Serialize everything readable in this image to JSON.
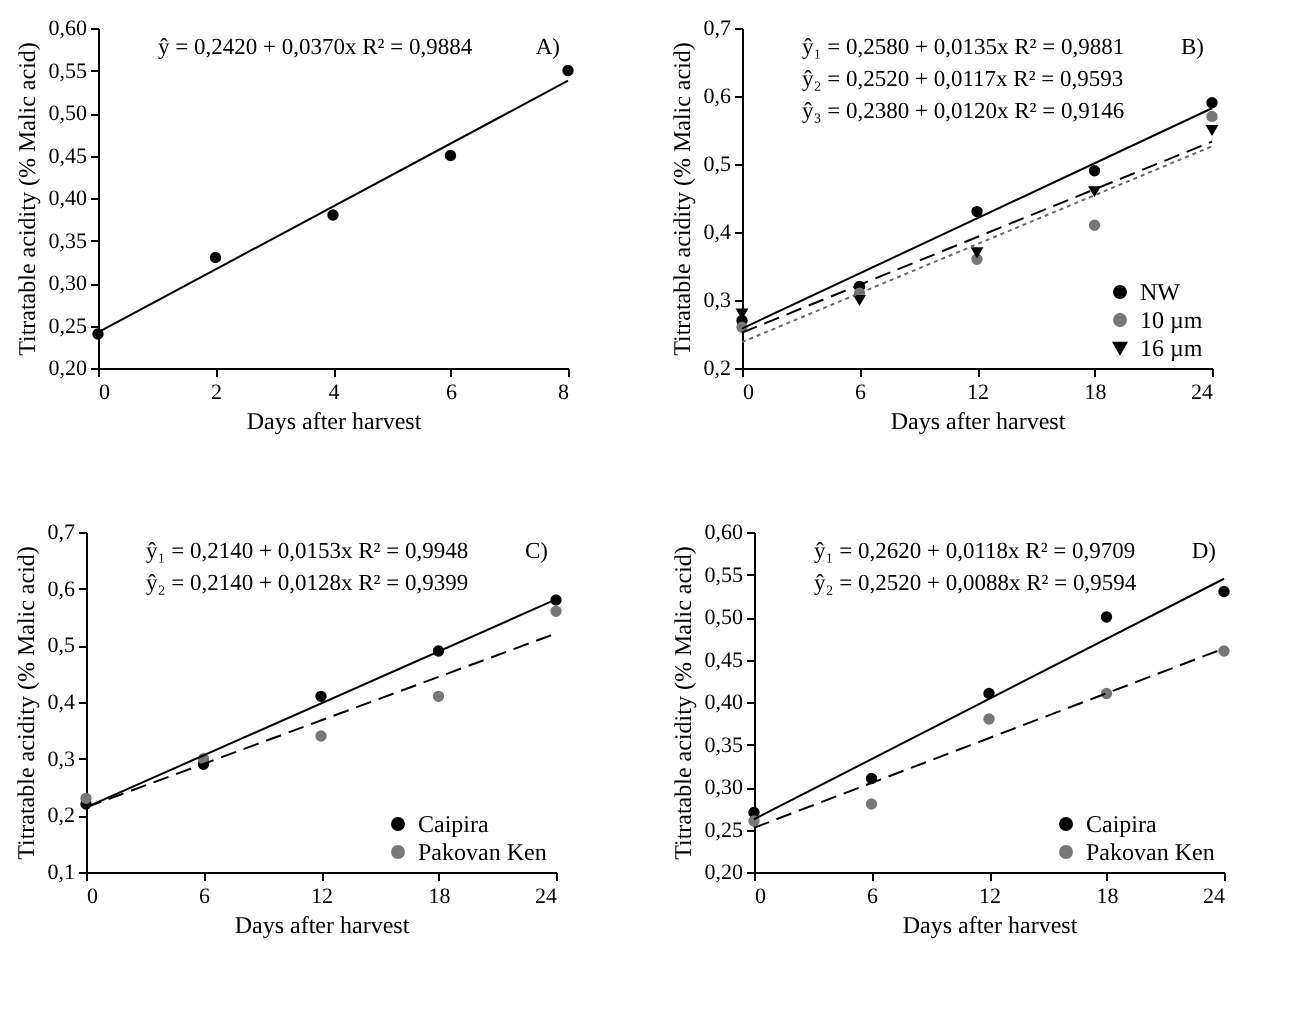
{
  "chart_data": [
    {
      "type": "scatter",
      "xlabel": "Days after harvest",
      "ylabel": "Titratable acidity (% Malic acid)",
      "annotations": [
        "A)",
        "ŷ = 0,2420 + 0,0370x  R² = 0,9884"
      ],
      "legend": false,
      "xlim": [
        0,
        8
      ],
      "xticks": [
        0,
        2,
        4,
        6,
        8
      ],
      "ylim": [
        0.2,
        0.6
      ],
      "yticks": [
        {
          "value": 0.2,
          "label": "0,20"
        },
        {
          "value": 0.25,
          "label": "0,25"
        },
        {
          "value": 0.3,
          "label": "0,30"
        },
        {
          "value": 0.35,
          "label": "0,35"
        },
        {
          "value": 0.4,
          "label": "0,40"
        },
        {
          "value": 0.45,
          "label": "0,45"
        },
        {
          "value": 0.5,
          "label": "0,50"
        },
        {
          "value": 0.55,
          "label": "0,55"
        },
        {
          "value": 0.6,
          "label": "0,60"
        }
      ],
      "x": [
        0,
        2,
        4,
        6,
        8
      ],
      "series": [
        {
          "color": "#000000",
          "marker": "circle",
          "values": [
            0.24,
            0.33,
            0.38,
            0.45,
            0.55
          ]
        },
        {
          "type": "line",
          "color": "#000000",
          "line_style": "solid",
          "x": [
            0,
            8
          ],
          "values": [
            0.242,
            0.538
          ]
        }
      ]
    },
    {
      "type": "scatter",
      "xlabel": "Days after harvest",
      "ylabel": "Titratable acidity (% Malic acid)",
      "annotations": [
        "B)",
        "ŷ₁ = 0,2580 + 0,0135x  R² = 0,9881",
        "ŷ₂ = 0,2520 + 0,0117x  R² = 0,9593",
        "ŷ₃ = 0,2380 + 0,0120x  R² = 0,9146"
      ],
      "legend": "bottom right",
      "xlim": [
        0,
        24
      ],
      "xticks": [
        0,
        6,
        12,
        18,
        24
      ],
      "ylim": [
        0.2,
        0.7
      ],
      "yticks": [
        {
          "value": 0.2,
          "label": "0,2"
        },
        {
          "value": 0.3,
          "label": "0,3"
        },
        {
          "value": 0.4,
          "label": "0,4"
        },
        {
          "value": 0.5,
          "label": "0,5"
        },
        {
          "value": 0.6,
          "label": "0,6"
        },
        {
          "value": 0.7,
          "label": "0,7"
        }
      ],
      "x": [
        0,
        6,
        12,
        18,
        24
      ],
      "series": [
        {
          "name": "NW",
          "color": "#000000",
          "marker": "circle",
          "values": [
            0.27,
            0.32,
            0.43,
            0.49,
            0.59
          ]
        },
        {
          "name": "10 µm",
          "color": "#777777",
          "marker": "circle",
          "values": [
            0.26,
            0.31,
            0.36,
            0.41,
            0.57
          ]
        },
        {
          "name": "16 µm",
          "color": "#000000",
          "marker": "triangle",
          "values": [
            0.28,
            0.3,
            0.37,
            0.46,
            0.55
          ]
        },
        {
          "type": "line",
          "color": "#000000",
          "line_style": "solid",
          "x": [
            0,
            24
          ],
          "values": [
            0.258,
            0.582
          ]
        },
        {
          "type": "line",
          "color": "#000000",
          "line_style": "dashed",
          "x": [
            0,
            24
          ],
          "values": [
            0.252,
            0.533
          ]
        },
        {
          "type": "line",
          "color": "#666666",
          "line_style": "dotted",
          "x": [
            0,
            24
          ],
          "values": [
            0.238,
            0.526
          ]
        }
      ]
    },
    {
      "type": "scatter",
      "xlabel": "Days after harvest",
      "ylabel": "Titratable acidity (% Malic acid)",
      "annotations": [
        "C)",
        "ŷ₁ = 0,2140 + 0,0153x  R² = 0,9948",
        "ŷ₂ = 0,2140 + 0,0128x  R² = 0,9399"
      ],
      "legend": "bottom right",
      "xlim": [
        0,
        24
      ],
      "xticks": [
        0,
        6,
        12,
        18,
        24
      ],
      "ylim": [
        0.1,
        0.7
      ],
      "yticks": [
        {
          "value": 0.1,
          "label": "0,1"
        },
        {
          "value": 0.2,
          "label": "0,2"
        },
        {
          "value": 0.3,
          "label": "0,3"
        },
        {
          "value": 0.4,
          "label": "0,4"
        },
        {
          "value": 0.5,
          "label": "0,5"
        },
        {
          "value": 0.6,
          "label": "0,6"
        },
        {
          "value": 0.7,
          "label": "0,7"
        }
      ],
      "x": [
        0,
        6,
        12,
        18,
        24
      ],
      "series": [
        {
          "name": "Caipira",
          "color": "#000000",
          "marker": "circle",
          "values": [
            0.22,
            0.29,
            0.41,
            0.49,
            0.58
          ]
        },
        {
          "name": "Pakovan Ken",
          "color": "#777777",
          "marker": "circle",
          "values": [
            0.23,
            0.3,
            0.34,
            0.41,
            0.56
          ]
        },
        {
          "type": "line",
          "color": "#000000",
          "line_style": "solid",
          "x": [
            0,
            24
          ],
          "values": [
            0.214,
            0.581
          ]
        },
        {
          "type": "line",
          "color": "#000000",
          "line_style": "dashed",
          "x": [
            0,
            24
          ],
          "values": [
            0.214,
            0.521
          ]
        }
      ]
    },
    {
      "type": "scatter",
      "xlabel": "Days after harvest",
      "ylabel": "Titratable acidity (% Malic acid)",
      "annotations": [
        "D)",
        "ŷ₁ = 0,2620 + 0,0118x  R² = 0,9709",
        "ŷ₂ = 0,2520 + 0,0088x  R² = 0,9594"
      ],
      "legend": "bottom right",
      "xlim": [
        0,
        24
      ],
      "xticks": [
        0,
        6,
        12,
        18,
        24
      ],
      "ylim": [
        0.2,
        0.6
      ],
      "yticks": [
        {
          "value": 0.2,
          "label": "0,20"
        },
        {
          "value": 0.25,
          "label": "0,25"
        },
        {
          "value": 0.3,
          "label": "0,30"
        },
        {
          "value": 0.35,
          "label": "0,35"
        },
        {
          "value": 0.4,
          "label": "0,40"
        },
        {
          "value": 0.45,
          "label": "0,45"
        },
        {
          "value": 0.5,
          "label": "0,50"
        },
        {
          "value": 0.55,
          "label": "0,55"
        },
        {
          "value": 0.6,
          "label": "0,60"
        }
      ],
      "x": [
        0,
        6,
        12,
        18,
        24
      ],
      "series": [
        {
          "name": "Caipira",
          "color": "#000000",
          "marker": "circle",
          "values": [
            0.27,
            0.31,
            0.41,
            0.5,
            0.53
          ]
        },
        {
          "name": "Pakovan Ken",
          "color": "#777777",
          "marker": "circle",
          "values": [
            0.26,
            0.28,
            0.38,
            0.41,
            0.46
          ]
        },
        {
          "type": "line",
          "color": "#000000",
          "line_style": "solid",
          "x": [
            0,
            24
          ],
          "values": [
            0.262,
            0.545
          ]
        },
        {
          "type": "line",
          "color": "#000000",
          "line_style": "dashed",
          "x": [
            0,
            24
          ],
          "values": [
            0.252,
            0.463
          ]
        }
      ]
    }
  ]
}
